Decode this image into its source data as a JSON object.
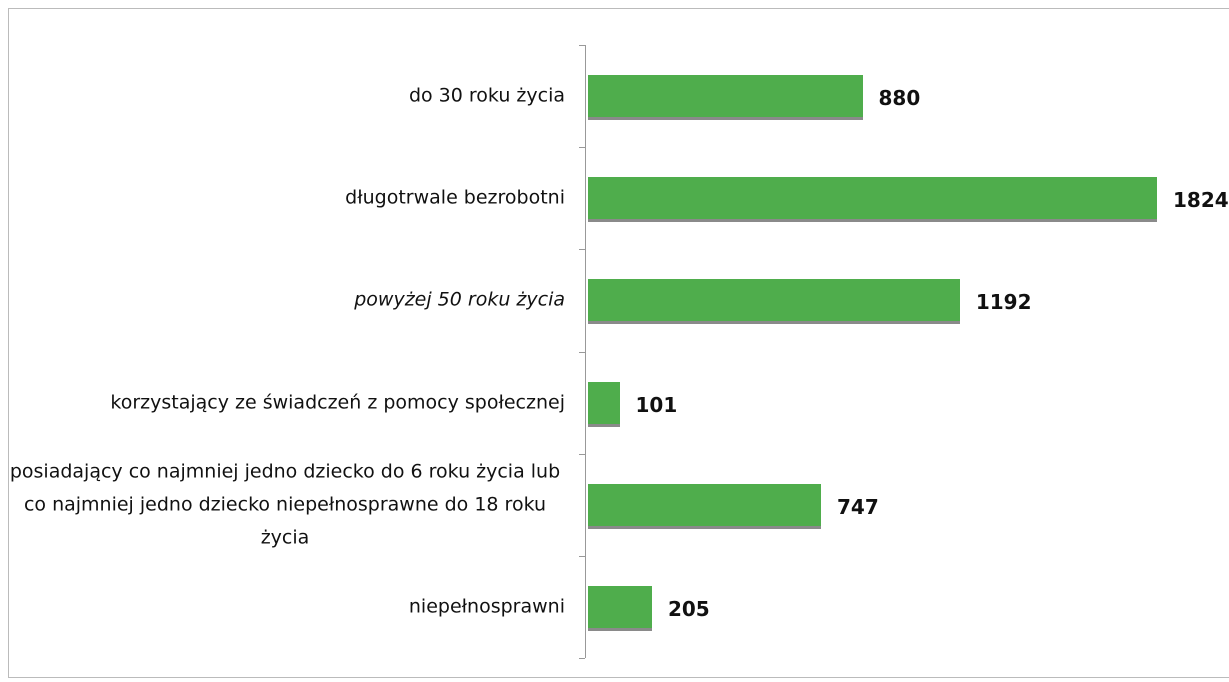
{
  "chart_data": {
    "type": "bar",
    "orientation": "horizontal",
    "categories": [
      "do 30 roku życia",
      "długotrwale bezrobotni",
      "powyżej 50 roku życia",
      "korzystający ze świadczeń z pomocy społecznej",
      "posiadający co najmniej jedno dziecko do 6 roku życia lub co najmniej jedno dziecko niepełnosprawne do 18 roku życia",
      "niepełnosprawni"
    ],
    "values": [
      880,
      1824,
      1192,
      101,
      747,
      205
    ],
    "color": "#4fad4c"
  }
}
